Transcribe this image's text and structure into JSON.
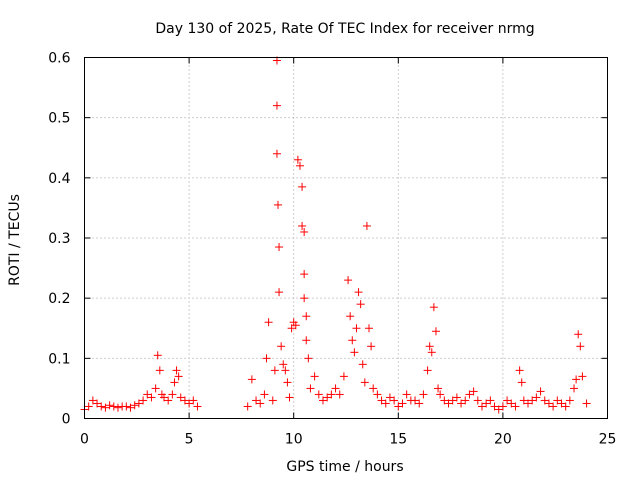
{
  "chart_data": {
    "type": "scatter",
    "title": "Day 130 of 2025, Rate Of TEC Index for receiver nrmg",
    "xlabel": "GPS time / hours",
    "ylabel": "ROTI / TECUs",
    "xlim": [
      0,
      25
    ],
    "ylim": [
      0,
      0.6
    ],
    "xticks": [
      "0",
      "5",
      "10",
      "15",
      "20",
      "25"
    ],
    "yticks": [
      "0",
      "0.1",
      "0.2",
      "0.3",
      "0.4",
      "0.5",
      "0.6"
    ],
    "xtick_values": [
      0,
      5,
      10,
      15,
      20,
      25
    ],
    "ytick_values": [
      0,
      0.1,
      0.2,
      0.3,
      0.4,
      0.5,
      0.6
    ],
    "grid": true,
    "marker": "+",
    "color": "#ff0000",
    "series": [
      {
        "x": [
          0.0,
          0.2,
          0.4,
          0.6,
          0.8,
          1.0,
          1.2,
          1.4,
          1.6,
          1.8,
          2.0,
          2.2,
          2.4,
          2.6,
          2.8,
          3.0,
          3.2,
          3.4,
          3.5,
          3.6,
          3.7,
          3.8,
          4.0,
          4.2,
          4.3,
          4.4,
          4.5,
          4.6,
          4.8,
          5.0,
          5.2,
          5.4,
          7.8,
          8.0,
          8.2,
          8.4,
          8.6,
          8.7,
          8.8,
          9.0,
          9.1,
          9.2,
          9.2,
          9.2,
          9.25,
          9.3,
          9.3,
          9.4,
          9.5,
          9.6,
          9.7,
          9.8,
          9.9,
          10.0,
          10.1,
          10.2,
          10.3,
          10.4,
          10.4,
          10.5,
          10.5,
          10.5,
          10.6,
          10.6,
          10.7,
          10.8,
          11.0,
          11.2,
          11.4,
          11.6,
          11.8,
          12.0,
          12.2,
          12.4,
          12.6,
          12.7,
          12.8,
          12.9,
          13.0,
          13.1,
          13.2,
          13.3,
          13.4,
          13.5,
          13.6,
          13.7,
          13.8,
          14.0,
          14.2,
          14.4,
          14.6,
          14.8,
          15.0,
          15.2,
          15.4,
          15.6,
          15.8,
          16.0,
          16.2,
          16.4,
          16.5,
          16.6,
          16.7,
          16.8,
          16.9,
          17.0,
          17.2,
          17.4,
          17.6,
          17.8,
          18.0,
          18.2,
          18.4,
          18.6,
          18.8,
          19.0,
          19.2,
          19.4,
          19.6,
          19.8,
          20.0,
          20.2,
          20.4,
          20.6,
          20.8,
          20.9,
          21.0,
          21.2,
          21.4,
          21.6,
          21.8,
          22.0,
          22.2,
          22.4,
          22.6,
          22.8,
          23.0,
          23.2,
          23.4,
          23.5,
          23.6,
          23.7,
          23.8,
          24.0
        ],
        "y": [
          0.015,
          0.02,
          0.03,
          0.025,
          0.02,
          0.018,
          0.022,
          0.02,
          0.018,
          0.02,
          0.02,
          0.018,
          0.022,
          0.025,
          0.03,
          0.04,
          0.035,
          0.05,
          0.105,
          0.08,
          0.04,
          0.035,
          0.03,
          0.04,
          0.06,
          0.08,
          0.07,
          0.035,
          0.03,
          0.025,
          0.03,
          0.02,
          0.02,
          0.065,
          0.03,
          0.025,
          0.04,
          0.1,
          0.16,
          0.03,
          0.08,
          0.595,
          0.52,
          0.44,
          0.355,
          0.285,
          0.21,
          0.12,
          0.09,
          0.08,
          0.06,
          0.035,
          0.15,
          0.16,
          0.155,
          0.43,
          0.42,
          0.385,
          0.32,
          0.31,
          0.24,
          0.2,
          0.17,
          0.13,
          0.1,
          0.05,
          0.07,
          0.04,
          0.03,
          0.035,
          0.04,
          0.05,
          0.04,
          0.07,
          0.23,
          0.17,
          0.13,
          0.11,
          0.15,
          0.21,
          0.19,
          0.09,
          0.06,
          0.32,
          0.15,
          0.12,
          0.05,
          0.04,
          0.03,
          0.025,
          0.035,
          0.03,
          0.02,
          0.025,
          0.04,
          0.03,
          0.03,
          0.025,
          0.04,
          0.08,
          0.12,
          0.11,
          0.185,
          0.145,
          0.05,
          0.04,
          0.03,
          0.025,
          0.03,
          0.035,
          0.025,
          0.03,
          0.04,
          0.045,
          0.03,
          0.02,
          0.025,
          0.03,
          0.02,
          0.015,
          0.02,
          0.03,
          0.025,
          0.02,
          0.08,
          0.06,
          0.03,
          0.025,
          0.03,
          0.035,
          0.045,
          0.03,
          0.025,
          0.02,
          0.03,
          0.025,
          0.02,
          0.03,
          0.05,
          0.065,
          0.14,
          0.12,
          0.07,
          0.025
        ]
      }
    ]
  }
}
